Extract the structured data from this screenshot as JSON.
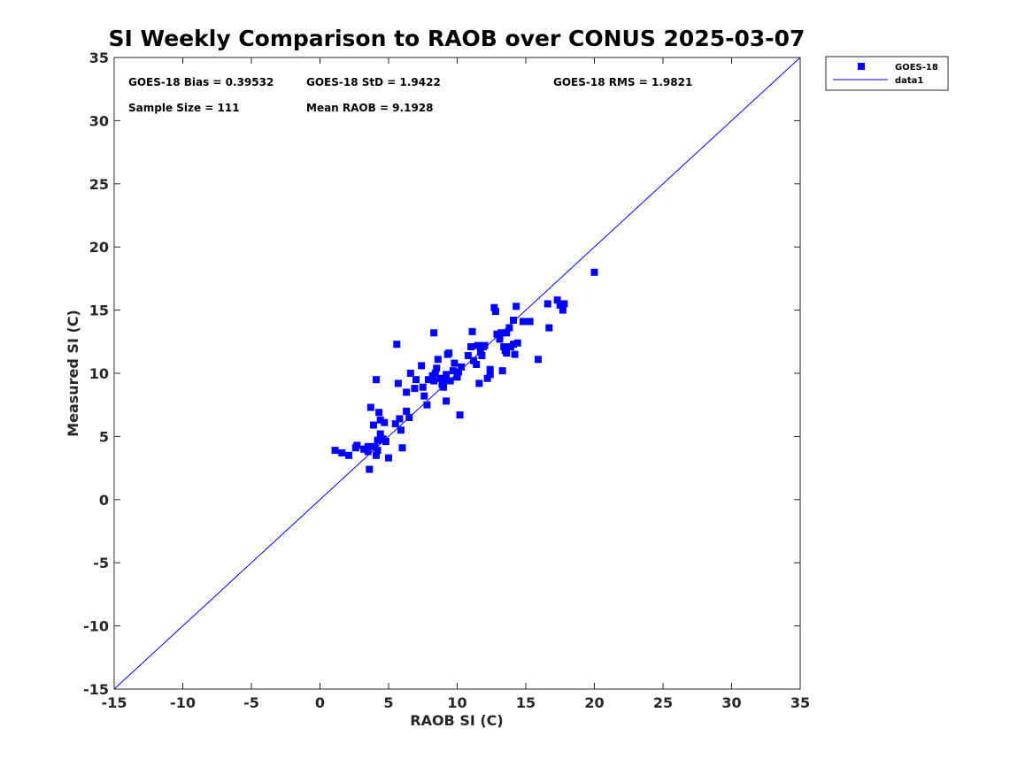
{
  "chart_data": {
    "type": "scatter",
    "title": "SI Weekly Comparison to RAOB over CONUS 2025-03-07",
    "xlabel": "RAOB SI (C)",
    "ylabel": "Measured SI (C)",
    "xlim": [
      -15,
      35
    ],
    "ylim": [
      -15,
      35
    ],
    "xticks": [
      "-15",
      "-10",
      "-5",
      "0",
      "5",
      "10",
      "15",
      "20",
      "25",
      "30",
      "35"
    ],
    "yticks": [
      "-15",
      "-10",
      "-5",
      "0",
      "5",
      "10",
      "15",
      "20",
      "25",
      "30",
      "35"
    ],
    "legend_position": "outside-top-right",
    "colors": {
      "series": "#0000ff",
      "axis": "#262626",
      "text": "#000000"
    },
    "stats": {
      "bias": "GOES-18 Bias = 0.39532",
      "std": "GOES-18 StD = 1.9422",
      "rms": "GOES-18 RMS = 1.9821",
      "sample_size": "Sample Size = 111",
      "mean_raob": "Mean RAOB = 9.1928"
    },
    "series": [
      {
        "name": "GOES-18",
        "marker": "square",
        "points": [
          [
            1.1,
            3.9
          ],
          [
            1.6,
            3.7
          ],
          [
            2.1,
            3.5
          ],
          [
            2.6,
            4.1
          ],
          [
            2.7,
            4.3
          ],
          [
            3.2,
            4.0
          ],
          [
            3.5,
            3.8
          ],
          [
            3.5,
            4.2
          ],
          [
            3.6,
            2.4
          ],
          [
            3.7,
            7.3
          ],
          [
            3.9,
            5.9
          ],
          [
            4.0,
            4.2
          ],
          [
            4.1,
            9.5
          ],
          [
            4.1,
            3.5
          ],
          [
            4.2,
            4.7
          ],
          [
            4.2,
            3.9
          ],
          [
            4.3,
            6.9
          ],
          [
            4.4,
            5.2
          ],
          [
            4.4,
            6.3
          ],
          [
            4.6,
            4.8
          ],
          [
            4.7,
            6.1
          ],
          [
            4.8,
            4.6
          ],
          [
            5.0,
            3.3
          ],
          [
            5.5,
            6.0
          ],
          [
            5.6,
            12.3
          ],
          [
            5.7,
            9.2
          ],
          [
            5.8,
            6.4
          ],
          [
            5.9,
            5.5
          ],
          [
            6.0,
            4.1
          ],
          [
            6.3,
            7.0
          ],
          [
            6.3,
            8.5
          ],
          [
            6.5,
            6.5
          ],
          [
            6.6,
            10.0
          ],
          [
            6.9,
            8.8
          ],
          [
            7.0,
            9.5
          ],
          [
            7.4,
            10.6
          ],
          [
            7.5,
            8.9
          ],
          [
            7.6,
            8.2
          ],
          [
            7.8,
            7.5
          ],
          [
            7.9,
            9.5
          ],
          [
            8.2,
            9.8
          ],
          [
            8.3,
            13.2
          ],
          [
            8.3,
            9.4
          ],
          [
            8.4,
            10.0
          ],
          [
            8.5,
            10.4
          ],
          [
            8.6,
            11.1
          ],
          [
            8.8,
            9.6
          ],
          [
            8.9,
            9.1
          ],
          [
            9.0,
            8.9
          ],
          [
            9.1,
            9.5
          ],
          [
            9.2,
            9.9
          ],
          [
            9.2,
            7.8
          ],
          [
            9.3,
            11.5
          ],
          [
            9.4,
            11.6
          ],
          [
            9.5,
            9.4
          ],
          [
            9.7,
            10.2
          ],
          [
            9.8,
            10.8
          ],
          [
            10.0,
            9.7
          ],
          [
            10.1,
            10.1
          ],
          [
            10.2,
            6.7
          ],
          [
            10.3,
            10.5
          ],
          [
            10.8,
            11.4
          ],
          [
            11.0,
            12.1
          ],
          [
            11.1,
            13.3
          ],
          [
            11.2,
            11.0
          ],
          [
            11.4,
            10.7
          ],
          [
            11.5,
            12.2
          ],
          [
            11.6,
            9.2
          ],
          [
            11.7,
            11.7
          ],
          [
            11.8,
            11.4
          ],
          [
            11.9,
            12.1
          ],
          [
            12.0,
            12.2
          ],
          [
            12.2,
            9.6
          ],
          [
            12.4,
            10.3
          ],
          [
            12.4,
            9.9
          ],
          [
            12.7,
            15.2
          ],
          [
            12.8,
            14.9
          ],
          [
            12.9,
            13.1
          ],
          [
            13.1,
            12.7
          ],
          [
            13.2,
            13.2
          ],
          [
            13.3,
            10.2
          ],
          [
            13.4,
            12.1
          ],
          [
            13.5,
            11.8
          ],
          [
            13.6,
            11.6
          ],
          [
            13.6,
            13.2
          ],
          [
            13.8,
            13.6
          ],
          [
            13.9,
            12.1
          ],
          [
            14.1,
            12.3
          ],
          [
            14.1,
            14.2
          ],
          [
            14.2,
            11.5
          ],
          [
            14.3,
            15.3
          ],
          [
            14.4,
            12.4
          ],
          [
            14.8,
            14.1
          ],
          [
            15.3,
            14.1
          ],
          [
            15.9,
            11.1
          ],
          [
            16.6,
            15.5
          ],
          [
            16.7,
            13.6
          ],
          [
            17.3,
            15.8
          ],
          [
            17.5,
            15.4
          ],
          [
            17.7,
            15.0
          ],
          [
            17.8,
            15.5
          ],
          [
            20.0,
            18.0
          ]
        ]
      },
      {
        "name": "data1",
        "type": "line",
        "points": [
          [
            -15,
            -15
          ],
          [
            35,
            35
          ]
        ]
      }
    ]
  }
}
